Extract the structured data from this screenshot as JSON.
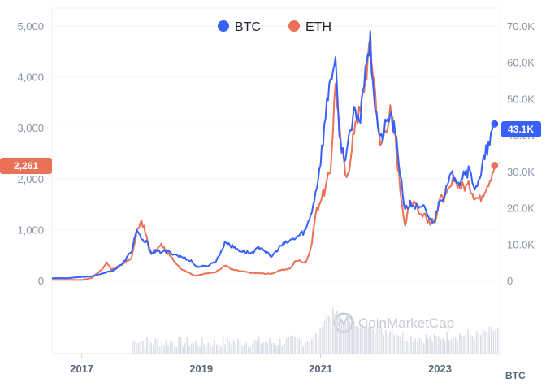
{
  "chart_data": {
    "type": "line",
    "legend": [
      {
        "label": "BTC",
        "color": "#3861fb"
      },
      {
        "label": "ETH",
        "color": "#ea7158"
      }
    ],
    "left_axis": {
      "series": "ETH",
      "ticks": [
        "0",
        "1,000",
        "2,000",
        "3,000",
        "4,000",
        "5,000"
      ],
      "range": [
        0,
        5000
      ]
    },
    "right_axis": {
      "series": "BTC",
      "ticks": [
        "0",
        "10.0K",
        "20.0K",
        "30.0K",
        "40.0K",
        "50.0K",
        "60.0K",
        "70.0K"
      ],
      "range": [
        0,
        70000
      ]
    },
    "x_ticks": [
      "2017",
      "2019",
      "2021",
      "2023"
    ],
    "x_range": [
      "2016-07",
      "2024-01"
    ],
    "unit_label": "BTC",
    "current": {
      "BTC": "43.1K",
      "ETH": "2,261"
    },
    "series": [
      {
        "name": "BTC",
        "color": "#3861fb",
        "axis": "right",
        "x": [
          "2016-07",
          "2016-10",
          "2017-01",
          "2017-03",
          "2017-05",
          "2017-07",
          "2017-09",
          "2017-11",
          "2017-12",
          "2018-01",
          "2018-02",
          "2018-03",
          "2018-05",
          "2018-07",
          "2018-09",
          "2018-11",
          "2018-12",
          "2019-02",
          "2019-04",
          "2019-06",
          "2019-07",
          "2019-09",
          "2019-11",
          "2020-01",
          "2020-03",
          "2020-05",
          "2020-07",
          "2020-08",
          "2020-10",
          "2020-11",
          "2020-12",
          "2021-01",
          "2021-02",
          "2021-03",
          "2021-04",
          "2021-05",
          "2021-06",
          "2021-07",
          "2021-08",
          "2021-09",
          "2021-10",
          "2021-11",
          "2021-12",
          "2022-01",
          "2022-02",
          "2022-03",
          "2022-04",
          "2022-05",
          "2022-06",
          "2022-07",
          "2022-08",
          "2022-09",
          "2022-10",
          "2022-11",
          "2022-12",
          "2023-01",
          "2023-02",
          "2023-03",
          "2023-04",
          "2023-05",
          "2023-06",
          "2023-07",
          "2023-08",
          "2023-09",
          "2023-10",
          "2023-11",
          "2023-12"
        ],
        "y": [
          650,
          650,
          1000,
          1100,
          1900,
          2600,
          4300,
          8000,
          14000,
          11000,
          10500,
          7800,
          8000,
          7600,
          6500,
          5400,
          3800,
          3900,
          5300,
          10800,
          9500,
          8100,
          7500,
          9300,
          6400,
          9500,
          11000,
          11700,
          13800,
          18000,
          24000,
          33000,
          45000,
          57000,
          58000,
          37000,
          34000,
          40000,
          47000,
          44000,
          61000,
          65000,
          48000,
          38000,
          42000,
          46000,
          40000,
          30000,
          19000,
          21000,
          20500,
          19500,
          20000,
          16500,
          16800,
          23000,
          23500,
          28000,
          29000,
          27500,
          30500,
          29500,
          26000,
          27000,
          34500,
          37500,
          43100
        ]
      },
      {
        "name": "ETH",
        "color": "#ea7158",
        "axis": "left",
        "x": [
          "2016-07",
          "2016-10",
          "2017-01",
          "2017-03",
          "2017-05",
          "2017-06",
          "2017-07",
          "2017-09",
          "2017-11",
          "2017-12",
          "2018-01",
          "2018-02",
          "2018-03",
          "2018-05",
          "2018-07",
          "2018-09",
          "2018-11",
          "2018-12",
          "2019-02",
          "2019-04",
          "2019-06",
          "2019-07",
          "2019-09",
          "2019-11",
          "2020-01",
          "2020-03",
          "2020-05",
          "2020-07",
          "2020-08",
          "2020-10",
          "2020-11",
          "2020-12",
          "2021-01",
          "2021-02",
          "2021-03",
          "2021-04",
          "2021-05",
          "2021-06",
          "2021-07",
          "2021-08",
          "2021-09",
          "2021-10",
          "2021-11",
          "2021-12",
          "2022-01",
          "2022-02",
          "2022-03",
          "2022-04",
          "2022-05",
          "2022-06",
          "2022-07",
          "2022-08",
          "2022-09",
          "2022-10",
          "2022-11",
          "2022-12",
          "2023-01",
          "2023-02",
          "2023-03",
          "2023-04",
          "2023-05",
          "2023-06",
          "2023-07",
          "2023-08",
          "2023-09",
          "2023-10",
          "2023-11",
          "2023-12"
        ],
        "y": [
          12,
          12,
          9,
          50,
          210,
          350,
          220,
          300,
          450,
          900,
          1200,
          850,
          500,
          700,
          450,
          230,
          130,
          90,
          140,
          170,
          300,
          220,
          180,
          150,
          140,
          130,
          200,
          240,
          400,
          360,
          600,
          1300,
          1600,
          1800,
          2200,
          3900,
          2700,
          2100,
          2300,
          3200,
          3300,
          4000,
          4600,
          3700,
          2600,
          3000,
          3300,
          2800,
          1800,
          1100,
          1500,
          1600,
          1300,
          1300,
          1100,
          1200,
          1600,
          1600,
          1800,
          2000,
          1850,
          1850,
          1850,
          1650,
          1600,
          1800,
          2000,
          2261
        ]
      }
    ],
    "volume": {
      "series": "BTC",
      "shown": true
    }
  },
  "watermark": {
    "text": "CoinMarketCap",
    "icon": "coinmarketcap-logo-icon"
  }
}
